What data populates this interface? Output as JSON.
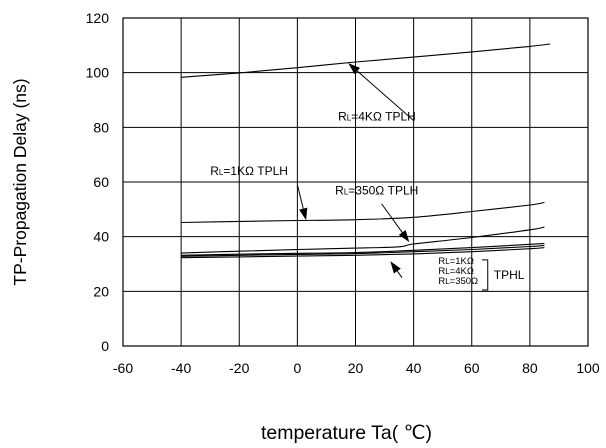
{
  "chart_data": {
    "type": "line",
    "title": "",
    "xlabel": "temperature Ta( ℃)",
    "ylabel": "TP-Propagation Delay (ns)",
    "xlim": [
      -60,
      100
    ],
    "ylim": [
      0,
      120
    ],
    "xticks": [
      -60,
      -40,
      -20,
      0,
      20,
      40,
      60,
      80,
      100
    ],
    "yticks": [
      0,
      20,
      40,
      60,
      80,
      100,
      120
    ],
    "xtick_labels": [
      "-60",
      "-40",
      "-20",
      "0",
      "20",
      "40",
      "60",
      "80",
      "100"
    ],
    "ytick_labels": [
      "0",
      "20",
      "40",
      "60",
      "80",
      "100",
      "120"
    ],
    "grid": true,
    "legend": "none",
    "series": [
      {
        "x": [
          -40,
          -20,
          0,
          20,
          40,
          60,
          80,
          87
        ],
        "y": [
          98.3,
          99.9,
          101.8,
          103.9,
          105.7,
          107.6,
          109.6,
          110.5
        ]
      },
      {
        "x": [
          -40,
          -20,
          0,
          20,
          40,
          60,
          80,
          85
        ],
        "y": [
          45.2,
          45.6,
          45.9,
          46.2,
          47.1,
          49.2,
          51.6,
          52.5
        ]
      },
      {
        "x": [
          -40,
          -20,
          0,
          20,
          35,
          40,
          60,
          80,
          85
        ],
        "y": [
          34.0,
          34.7,
          35.3,
          35.8,
          36.3,
          37.3,
          39.7,
          42.5,
          43.5
        ]
      },
      {
        "x": [
          -40,
          -20,
          0,
          20,
          40,
          60,
          80,
          85
        ],
        "y": [
          33.2,
          33.6,
          33.9,
          34.2,
          35.0,
          36.0,
          37.2,
          37.5
        ]
      },
      {
        "x": [
          -40,
          -20,
          0,
          20,
          40,
          60,
          80,
          85
        ],
        "y": [
          32.8,
          33.2,
          33.5,
          33.8,
          34.5,
          35.3,
          36.4,
          36.8
        ]
      },
      {
        "x": [
          -40,
          -20,
          0,
          20,
          40,
          60,
          80,
          85
        ],
        "y": [
          32.3,
          32.6,
          32.9,
          33.2,
          33.7,
          34.5,
          35.6,
          36.0
        ]
      }
    ],
    "annotations": [
      {
        "r": "R",
        "sub": "L",
        "rest": "=4KΩ TPLH",
        "text_at": [
          14,
          82.5
        ],
        "arrow_from": [
          40,
          82.5
        ],
        "arrow_to": [
          17.5,
          103.5
        ]
      },
      {
        "r": "R",
        "sub": "L",
        "rest": "=1KΩ TPLH",
        "text_at": [
          -30,
          62.5
        ],
        "arrow_from": [
          0,
          59
        ],
        "arrow_to": [
          3,
          46
        ]
      },
      {
        "r": "R",
        "sub": "L",
        "rest": "=350Ω TPLH",
        "text_at": [
          13,
          55.5
        ],
        "arrow_from": [
          29,
          52
        ],
        "arrow_to": [
          38.5,
          38
        ]
      },
      {
        "r": "R",
        "sub": "L",
        "rest": "=1KΩ",
        "text_at": [
          48.5,
          30
        ],
        "arrow_from": null,
        "arrow_to": null
      },
      {
        "r": "R",
        "sub": "L",
        "rest": "=4KΩ",
        "text_at": [
          48.5,
          26.3
        ],
        "arrow_from": null,
        "arrow_to": null
      },
      {
        "r": "R",
        "sub": "L",
        "rest": "=350Ω",
        "text_at": [
          48.5,
          22.6
        ],
        "arrow_from": null,
        "arrow_to": null
      }
    ],
    "bracket_label": "TPHL",
    "tphl_arrow": {
      "arrow_from": [
        36,
        25
      ],
      "arrow_to": [
        32,
        31
      ]
    }
  }
}
